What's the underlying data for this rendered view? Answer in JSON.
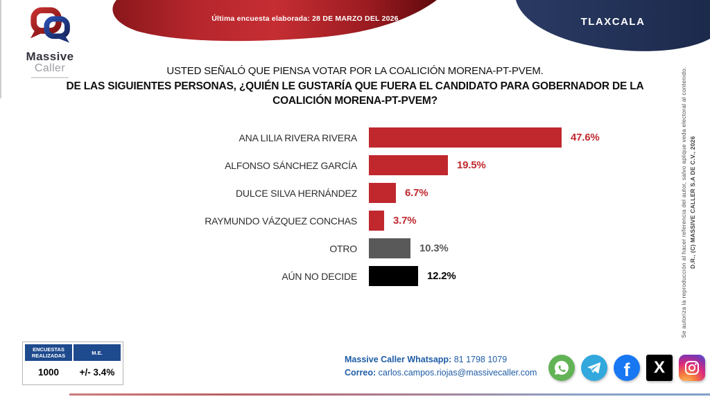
{
  "header": {
    "logo": {
      "name_line1": "Massive",
      "name_line2": "Caller"
    },
    "survey_banner": "Última encuesta elaborada: 28 DE MARZO DEL 2026",
    "state": "TLAXCALA"
  },
  "question": {
    "line1": "USTED SEÑALÓ QUE PIENSA VOTAR POR LA COALICIÓN MORENA-PT-PVEM.",
    "line2": "DE LAS SIGUIENTES PERSONAS, ¿QUIÉN LE GUSTARÍA QUE FUERA EL CANDIDATO PARA GOBERNADOR DE LA COALICIÓN MORENA-PT-PVEM?"
  },
  "chart_data": {
    "type": "bar",
    "orientation": "horizontal",
    "title": "",
    "categories": [
      "ANA LILIA RIVERA RIVERA",
      "ALFONSO SÁNCHEZ GARCÍA",
      "DULCE SILVA HERNÁNDEZ",
      "RAYMUNDO VÁZQUEZ CONCHAS",
      "OTRO",
      "AÚN NO DECIDE"
    ],
    "values": [
      47.6,
      19.5,
      6.7,
      3.7,
      10.3,
      12.2
    ],
    "value_labels": [
      "47.6%",
      "19.5%",
      "6.7%",
      "3.7%",
      "10.3%",
      "12.2%"
    ],
    "bar_colors": [
      "#c0282e",
      "#c0282e",
      "#c0282e",
      "#c0282e",
      "#595959",
      "#000000"
    ],
    "value_colors": [
      "#c0282e",
      "#c0282e",
      "#c0282e",
      "#c0282e",
      "#595959",
      "#000000"
    ],
    "xlim": [
      0,
      50
    ],
    "grid": false,
    "legend": false
  },
  "stats_table": {
    "headers": [
      "ENCUESTAS REALIZADAS",
      "M.E."
    ],
    "values": [
      "1000",
      "+/- 3.4%"
    ]
  },
  "contact": {
    "whatsapp_label": "Massive Caller Whatsapp:",
    "whatsapp_value": "81 1798 1079",
    "email_label": "Correo:",
    "email_value": "carlos.campos.riojas@massivecaller.com"
  },
  "social_icons": [
    "whatsapp",
    "telegram",
    "facebook",
    "x",
    "instagram"
  ],
  "copyright": {
    "rights": "D.R., (C) MASSIVE CALLER S.A DE C.V., 2026",
    "notice": "Se autoriza la reproducción al hacer referencia del autor, salvo aplique veda electoral al contenido."
  },
  "colors": {
    "accent_red": "#c0282e",
    "banner_navy": "#203258",
    "table_header_blue": "#1e4a8e",
    "contact_blue": "#1e5ca6",
    "bar_gray": "#595959",
    "bar_black": "#000000"
  }
}
